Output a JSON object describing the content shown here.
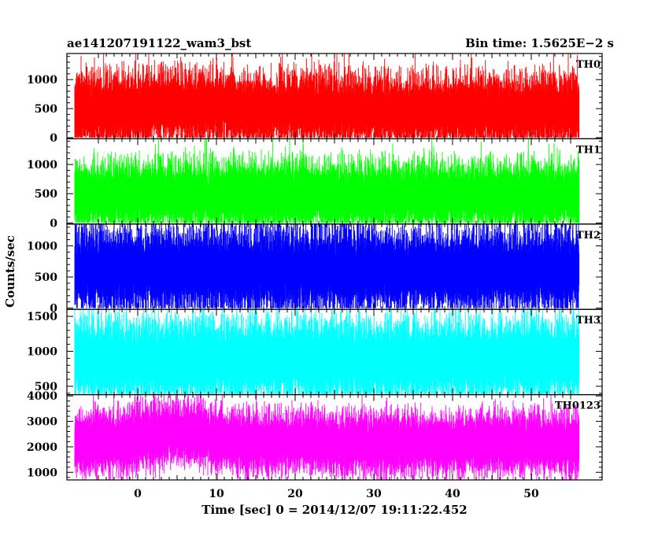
{
  "header": {
    "left_title": "ae141207191122_wam3_bst",
    "right_title": "Bin time: 1.5625E−2 s"
  },
  "chart_data": {
    "type": "line",
    "title": "ae141207191122_wam3_bst",
    "subtitle": "Bin time: 1.5625E−2 s",
    "xlabel": "Time [sec] 0 = 2014/12/07 19:11:22.452",
    "ylabel": "Counts/sec",
    "xlim": [
      -9,
      59
    ],
    "x_ticks": [
      0,
      10,
      20,
      30,
      40,
      50
    ],
    "data_x_range": [
      -8,
      56
    ],
    "bin_time_s": 0.015625,
    "grid": false,
    "panels": [
      {
        "name": "TH0",
        "color": "#ff0000",
        "ylim": [
          -20,
          1450
        ],
        "y_ticks": [
          0,
          500,
          1000
        ],
        "base_level": 480,
        "noise_sd": 210,
        "y_clip": [
          0,
          1450
        ]
      },
      {
        "name": "TH1",
        "color": "#00ff00",
        "ylim": [
          -20,
          1440
        ],
        "y_ticks": [
          0,
          500,
          1000
        ],
        "base_level": 470,
        "noise_sd": 200,
        "y_clip": [
          0,
          1440
        ]
      },
      {
        "name": "TH2",
        "color": "#0000ff",
        "ylim": [
          -20,
          1350
        ],
        "y_ticks": [
          0,
          500,
          1000
        ],
        "base_level": 620,
        "noise_sd": 230,
        "y_clip": [
          0,
          1350
        ]
      },
      {
        "name": "TH3",
        "color": "#00ffff",
        "ylim": [
          380,
          1600
        ],
        "y_ticks": [
          500,
          1000,
          1500
        ],
        "y_tick_labels": [
          "500",
          "1000",
          "1500"
        ],
        "base_level": 880,
        "noise_sd": 200,
        "y_clip": [
          380,
          1600
        ]
      },
      {
        "name": "TH0123",
        "color": "#ff00ff",
        "ylim": [
          700,
          4050
        ],
        "y_ticks": [
          1000,
          2000,
          3000,
          4000
        ],
        "base_level": 2150,
        "noise_sd": 420,
        "y_clip": [
          700,
          4050
        ]
      }
    ]
  }
}
